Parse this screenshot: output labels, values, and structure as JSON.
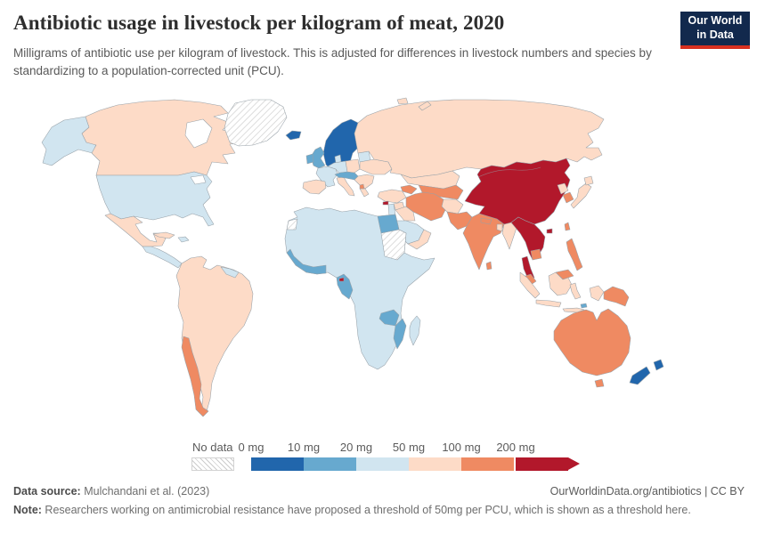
{
  "header": {
    "title": "Antibiotic usage in livestock per kilogram of meat, 2020",
    "subtitle": "Milligrams of antibiotic use per kilogram of livestock. This is adjusted for differences in livestock numbers and species by standardizing to a population-corrected unit (PCU).",
    "logo": {
      "line1": "Our World",
      "line2": "in Data",
      "bg": "#12294d",
      "accent": "#d7301f"
    }
  },
  "legend": {
    "no_data_label": "No data",
    "tick_labels": [
      "0 mg",
      "10 mg",
      "20 mg",
      "50 mg",
      "100 mg",
      "200 mg"
    ],
    "band_colors": [
      "#2166ac",
      "#67a9cf",
      "#d1e5f0",
      "#fddbc7",
      "#ef8a62",
      "#b2182b"
    ]
  },
  "map": {
    "border_color": "#97a1a8",
    "regions": {
      "greenland": -1,
      "alaska": 2,
      "canada": 3,
      "usa": 2,
      "mexico": 3,
      "central-america": 2,
      "cuba": 3,
      "hispaniola": 2,
      "south-america": 3,
      "chile": 4,
      "guyanas": 2,
      "iceland": 0,
      "scandinavia": 0,
      "denmark": 2,
      "uk": 1,
      "ireland": 1,
      "france": 2,
      "germany": 2,
      "iberia": 3,
      "italy": 3,
      "alpine": 1,
      "poland": 3,
      "baltics": 2,
      "belarus-ukraine": 3,
      "balkans": 3,
      "greece": 3,
      "albania": 4,
      "russia": 3,
      "svalbard": 3,
      "novaya-zemlya": 3,
      "kazakhstan": 3,
      "central-asia": 4,
      "caucasus": 4,
      "turkey": 3,
      "cyprus": 5,
      "levant": 2,
      "syria": 3,
      "iraq": 3,
      "iran": 4,
      "afghanistan": 3,
      "pakistan": 4,
      "saudi": 2,
      "yemen-oman": 3,
      "india": 4,
      "sri-lanka": 4,
      "nepal": 4,
      "bangladesh": 3,
      "myanmar": 3,
      "china": 5,
      "hainan": 5,
      "taiwan": 4,
      "north-korea": 3,
      "south-korea": 4,
      "japan": 3,
      "indochina": 5,
      "cambodia": 4,
      "malaysia": 4,
      "philippines": 4,
      "sumatra": 3,
      "java": 3,
      "borneo": 3,
      "sulawesi": 3,
      "lesser-sunda": 3,
      "east-timor": 1,
      "west-papua": 3,
      "png": 4,
      "australia": 4,
      "tasmania": 4,
      "new-zealand": 0,
      "africa": 2,
      "egypt": 1,
      "sudan": -1,
      "west-sahara": -1,
      "west-africa-coast": 1,
      "cameroon-gabon": 1,
      "eq-guinea": 5,
      "zambia": 1,
      "mozambique": 1,
      "madagascar": 2
    }
  },
  "footer": {
    "source_label": "Data source:",
    "source_value": " Mulchandani et al. (2023)",
    "credit": "OurWorldinData.org/antibiotics | CC BY",
    "note_label": "Note:",
    "note_value": " Researchers working on antimicrobial resistance have proposed a threshold of 50mg per PCU, which is shown as a threshold here."
  },
  "chart_data": {
    "type": "heatmap",
    "title": "Antibiotic usage in livestock per kilogram of meat, 2020",
    "unit": "mg of antibiotics per population-corrected unit (PCU)",
    "year": 2020,
    "legend_position": "bottom",
    "scale_bands": [
      {
        "range": "0-10 mg",
        "color": "#2166ac"
      },
      {
        "range": "10-20 mg",
        "color": "#67a9cf"
      },
      {
        "range": "20-50 mg",
        "color": "#d1e5f0"
      },
      {
        "range": "50-100 mg",
        "color": "#fddbc7"
      },
      {
        "range": "100-200 mg",
        "color": "#ef8a62"
      },
      {
        "range": "200+ mg",
        "color": "#b2182b"
      },
      {
        "range": "No data",
        "color": "hatched"
      }
    ],
    "regions": [
      {
        "name": "China (incl. Mongolia shown same band)",
        "band": "200+ mg"
      },
      {
        "name": "Thailand",
        "band": "200+ mg"
      },
      {
        "name": "Vietnam",
        "band": "200+ mg"
      },
      {
        "name": "Cyprus",
        "band": "200+ mg"
      },
      {
        "name": "Equatorial Guinea",
        "band": "200+ mg"
      },
      {
        "name": "India",
        "band": "100-200 mg"
      },
      {
        "name": "Pakistan",
        "band": "100-200 mg"
      },
      {
        "name": "Iran",
        "band": "100-200 mg"
      },
      {
        "name": "Uzbekistan/Turkmenistan",
        "band": "100-200 mg"
      },
      {
        "name": "South Korea",
        "band": "100-200 mg"
      },
      {
        "name": "Taiwan",
        "band": "100-200 mg"
      },
      {
        "name": "Philippines",
        "band": "100-200 mg"
      },
      {
        "name": "Malaysia",
        "band": "100-200 mg"
      },
      {
        "name": "Papua New Guinea",
        "band": "100-200 mg"
      },
      {
        "name": "Australia",
        "band": "100-200 mg"
      },
      {
        "name": "Chile",
        "band": "100-200 mg"
      },
      {
        "name": "Albania",
        "band": "100-200 mg"
      },
      {
        "name": "Canada",
        "band": "50-100 mg"
      },
      {
        "name": "Mexico",
        "band": "50-100 mg"
      },
      {
        "name": "Brazil and most of South America",
        "band": "50-100 mg"
      },
      {
        "name": "Russia",
        "band": "50-100 mg"
      },
      {
        "name": "Kazakhstan",
        "band": "50-100 mg"
      },
      {
        "name": "Spain/Portugal",
        "band": "50-100 mg"
      },
      {
        "name": "Italy",
        "band": "50-100 mg"
      },
      {
        "name": "Poland/Ukraine/Balkans",
        "band": "50-100 mg"
      },
      {
        "name": "Turkey",
        "band": "50-100 mg"
      },
      {
        "name": "Iraq",
        "band": "50-100 mg"
      },
      {
        "name": "Afghanistan",
        "band": "50-100 mg"
      },
      {
        "name": "Myanmar",
        "band": "50-100 mg"
      },
      {
        "name": "Japan",
        "band": "50-100 mg"
      },
      {
        "name": "North Korea",
        "band": "50-100 mg"
      },
      {
        "name": "Indonesia",
        "band": "50-100 mg"
      },
      {
        "name": "United States",
        "band": "20-50 mg"
      },
      {
        "name": "France",
        "band": "20-50 mg"
      },
      {
        "name": "Germany",
        "band": "20-50 mg"
      },
      {
        "name": "Saudi Arabia",
        "band": "20-50 mg"
      },
      {
        "name": "North and much of Sub-Saharan Africa",
        "band": "20-50 mg"
      },
      {
        "name": "Madagascar",
        "band": "20-50 mg"
      },
      {
        "name": "United Kingdom",
        "band": "10-20 mg"
      },
      {
        "name": "Ireland",
        "band": "10-20 mg"
      },
      {
        "name": "Austria/Switzerland/Hungary",
        "band": "10-20 mg"
      },
      {
        "name": "Egypt",
        "band": "10-20 mg"
      },
      {
        "name": "West African coast (Guinea to Ghana)",
        "band": "10-20 mg"
      },
      {
        "name": "Cameroon/Gabon/Congo",
        "band": "10-20 mg"
      },
      {
        "name": "Zambia",
        "band": "10-20 mg"
      },
      {
        "name": "Mozambique",
        "band": "10-20 mg"
      },
      {
        "name": "Norway/Sweden/Finland",
        "band": "0-10 mg"
      },
      {
        "name": "Iceland",
        "band": "0-10 mg"
      },
      {
        "name": "New Zealand",
        "band": "0-10 mg"
      },
      {
        "name": "Greenland",
        "band": "No data"
      },
      {
        "name": "Sudan",
        "band": "No data"
      },
      {
        "name": "Western Sahara",
        "band": "No data"
      }
    ]
  }
}
